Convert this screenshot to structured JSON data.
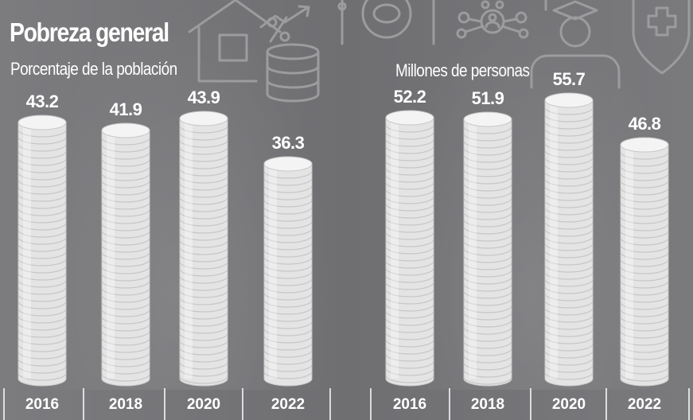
{
  "title": "Pobreza general",
  "colors": {
    "background": "#727275",
    "coin": "#e4e4e4",
    "coin_edge": "#c7c7c7",
    "text": "#ffffff",
    "icon_line": "#9c9c9f",
    "separator": "#ffffff"
  },
  "icons": [
    "house-icon",
    "percent-icon",
    "growth-arrow-icon",
    "coin-stack-icon",
    "bread-plate-icon",
    "network-people-icon",
    "graduate-icon",
    "health-shield-icon"
  ],
  "chart_data": [
    {
      "type": "bar",
      "subtitle": "Porcentaje de la población",
      "categories": [
        "2016",
        "2018",
        "2020",
        "2022"
      ],
      "values": [
        43.2,
        41.9,
        43.9,
        36.3
      ],
      "value_labels": [
        "43.2",
        "41.9",
        "43.9",
        "36.3"
      ],
      "grid": false,
      "legend": "none"
    },
    {
      "type": "bar",
      "subtitle": "Millones de personas",
      "categories": [
        "2016",
        "2018",
        "2020",
        "2022"
      ],
      "values": [
        52.2,
        51.9,
        55.7,
        46.8
      ],
      "value_labels": [
        "52.2",
        "51.9",
        "55.7",
        "46.8"
      ],
      "grid": false,
      "legend": "none"
    }
  ]
}
